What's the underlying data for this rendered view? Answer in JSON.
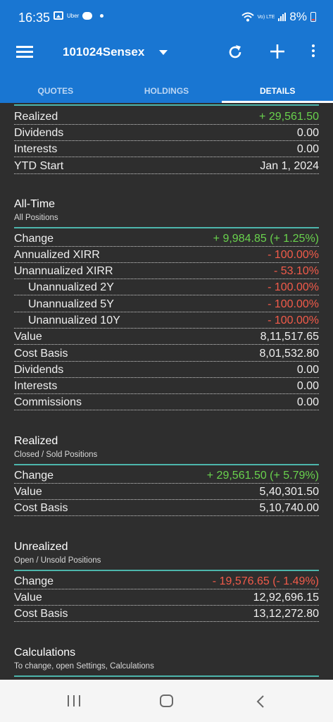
{
  "status_bar": {
    "time": "16:35",
    "notification_text": "Uber",
    "volte_text": "Vo) LTE",
    "battery": "8%",
    "icons": [
      "gallery-icon",
      "uber-icon",
      "chat-bubble-icon",
      "dot-icon",
      "wifi-icon",
      "volte-icon",
      "signal-icon",
      "battery-icon"
    ]
  },
  "app_bar": {
    "title": "101024Sensex",
    "icons": [
      "menu-icon",
      "dropdown-caret-icon",
      "refresh-icon",
      "add-icon",
      "more-vert-icon"
    ]
  },
  "tabs": [
    {
      "label": "QUOTES",
      "active": false
    },
    {
      "label": "HOLDINGS",
      "active": false
    },
    {
      "label": "DETAILS",
      "active": true
    }
  ],
  "ytd_partial": {
    "rows": [
      {
        "label": "Realized",
        "value": "+ 29,561.50",
        "tone": "pos"
      },
      {
        "label": "Dividends",
        "value": "0.00",
        "tone": ""
      },
      {
        "label": "Interests",
        "value": "0.00",
        "tone": ""
      },
      {
        "label": "YTD Start",
        "value": "Jan 1, 2024",
        "tone": ""
      }
    ]
  },
  "all_time": {
    "title": "All-Time",
    "subtitle": "All Positions",
    "rows": [
      {
        "label": "Change",
        "value": "+ 9,984.85 (+ 1.25%)",
        "tone": "pos"
      },
      {
        "label": "Annualized XIRR",
        "value": "- 100.00%",
        "tone": "neg"
      },
      {
        "label": "Unannualized XIRR",
        "value": "- 53.10%",
        "tone": "neg"
      },
      {
        "label": "Unannualized 2Y",
        "value": "- 100.00%",
        "tone": "neg"
      },
      {
        "label": "Unannualized 5Y",
        "value": "- 100.00%",
        "tone": "neg"
      },
      {
        "label": "Unannualized 10Y",
        "value": "- 100.00%",
        "tone": "neg"
      },
      {
        "label": "Value",
        "value": "8,11,517.65",
        "tone": ""
      },
      {
        "label": "Cost Basis",
        "value": "8,01,532.80",
        "tone": ""
      },
      {
        "label": "Dividends",
        "value": "0.00",
        "tone": ""
      },
      {
        "label": "Interests",
        "value": "0.00",
        "tone": ""
      },
      {
        "label": "Commissions",
        "value": "0.00",
        "tone": ""
      }
    ]
  },
  "realized": {
    "title": "Realized",
    "subtitle": "Closed / Sold Positions",
    "rows": [
      {
        "label": "Change",
        "value": "+ 29,561.50 (+ 5.79%)",
        "tone": "pos"
      },
      {
        "label": "Value",
        "value": "5,40,301.50",
        "tone": ""
      },
      {
        "label": "Cost Basis",
        "value": "5,10,740.00",
        "tone": ""
      }
    ]
  },
  "unrealized": {
    "title": "Unrealized",
    "subtitle": "Open / Unsold Positions",
    "rows": [
      {
        "label": "Change",
        "value": "- 19,576.65 (- 1.49%)",
        "tone": "neg"
      },
      {
        "label": "Value",
        "value": "12,92,696.15",
        "tone": ""
      },
      {
        "label": "Cost Basis",
        "value": "13,12,272.80",
        "tone": ""
      }
    ]
  },
  "calculations": {
    "title": "Calculations",
    "subtitle": "To change, open Settings, Calculations"
  },
  "nav_bar": {
    "icons": [
      "recents-icon",
      "home-icon",
      "back-icon"
    ]
  },
  "colors": {
    "primary": "#1976d2",
    "background": "#2e2e2e",
    "accent_line": "#4db6ac",
    "positive": "#69d24d",
    "negative": "#f25b4a"
  }
}
